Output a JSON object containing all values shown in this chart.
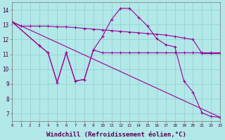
{
  "background_color": "#b2e8e8",
  "grid_color": "#c8e8e8",
  "line_color": "#990099",
  "marker": "+",
  "xlabel": "Windchill (Refroidissement éolien,°C)",
  "xlabel_fontsize": 6.5,
  "ylabel_values": [
    7,
    8,
    9,
    10,
    11,
    12,
    13,
    14
  ],
  "xmin": 0,
  "xmax": 23,
  "ymin": 6.5,
  "ymax": 14.5,
  "series": [
    {
      "x": [
        0,
        1,
        2,
        3,
        4,
        5,
        6,
        7,
        8,
        9,
        10,
        11,
        12,
        13,
        14,
        15,
        16,
        17,
        18,
        19,
        20,
        21,
        22,
        23
      ],
      "y": [
        13.2,
        12.9,
        12.9,
        12.9,
        12.9,
        12.85,
        12.85,
        12.8,
        12.75,
        12.7,
        12.65,
        12.6,
        12.55,
        12.5,
        12.45,
        12.4,
        12.35,
        12.3,
        12.2,
        12.1,
        12.0,
        11.05,
        11.05,
        11.05
      ]
    },
    {
      "x": [
        0,
        3,
        4,
        5,
        6,
        7,
        8,
        9,
        10,
        11,
        12,
        13,
        14,
        15,
        16,
        17,
        18,
        19,
        20,
        21,
        22,
        23
      ],
      "y": [
        13.2,
        11.6,
        11.1,
        9.1,
        11.1,
        9.2,
        9.3,
        11.3,
        12.2,
        13.35,
        14.1,
        14.1,
        13.5,
        12.9,
        12.05,
        11.65,
        11.5,
        9.2,
        8.45,
        7.05,
        6.8,
        6.75
      ]
    },
    {
      "x": [
        0,
        3,
        4,
        5,
        6,
        7,
        8,
        9,
        10,
        11,
        12,
        13,
        14,
        15,
        16,
        17,
        18,
        19,
        20,
        21,
        22,
        23
      ],
      "y": [
        13.2,
        11.6,
        11.1,
        9.1,
        11.1,
        9.2,
        9.3,
        11.3,
        11.1,
        11.1,
        11.1,
        11.1,
        11.1,
        11.1,
        11.1,
        11.1,
        11.1,
        11.1,
        11.1,
        11.1,
        11.1,
        11.1
      ]
    },
    {
      "x": [
        0,
        23
      ],
      "y": [
        13.2,
        6.75
      ]
    }
  ]
}
